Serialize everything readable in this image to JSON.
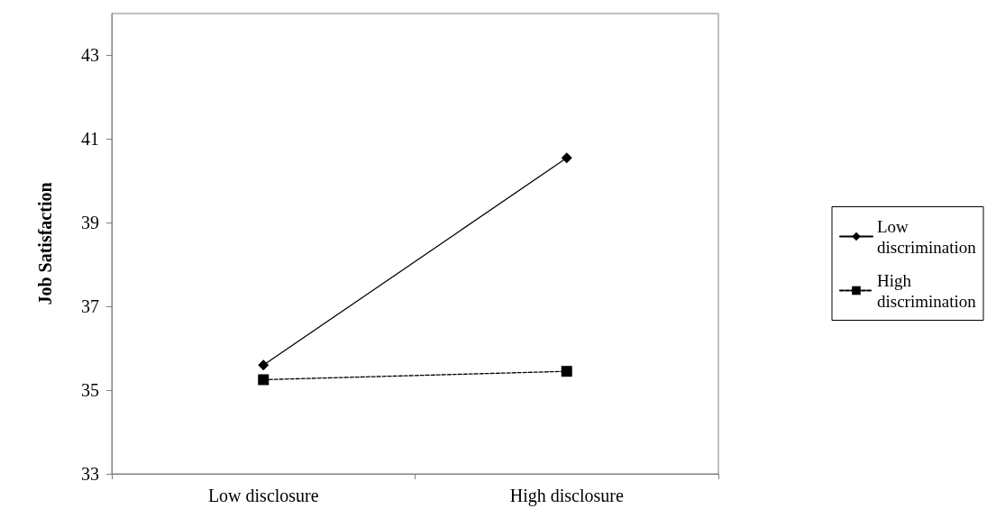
{
  "chart_data": {
    "type": "line",
    "ylabel": "Job Satisfaction",
    "categories": [
      "Low disclosure",
      "High disclosure"
    ],
    "series": [
      {
        "name": "Low discrimination",
        "color": "#000000",
        "values": [
          35.6,
          40.55
        ],
        "marker": "diamond",
        "line_style": "solid"
      },
      {
        "name": "High discrimination",
        "color": "#000000",
        "values": [
          35.25,
          35.45
        ],
        "marker": "square",
        "line_style": "dashed"
      }
    ],
    "ylim": [
      33,
      44
    ],
    "yticks": [
      33,
      35,
      37,
      39,
      41,
      43
    ],
    "grid": false,
    "legend": "right"
  }
}
